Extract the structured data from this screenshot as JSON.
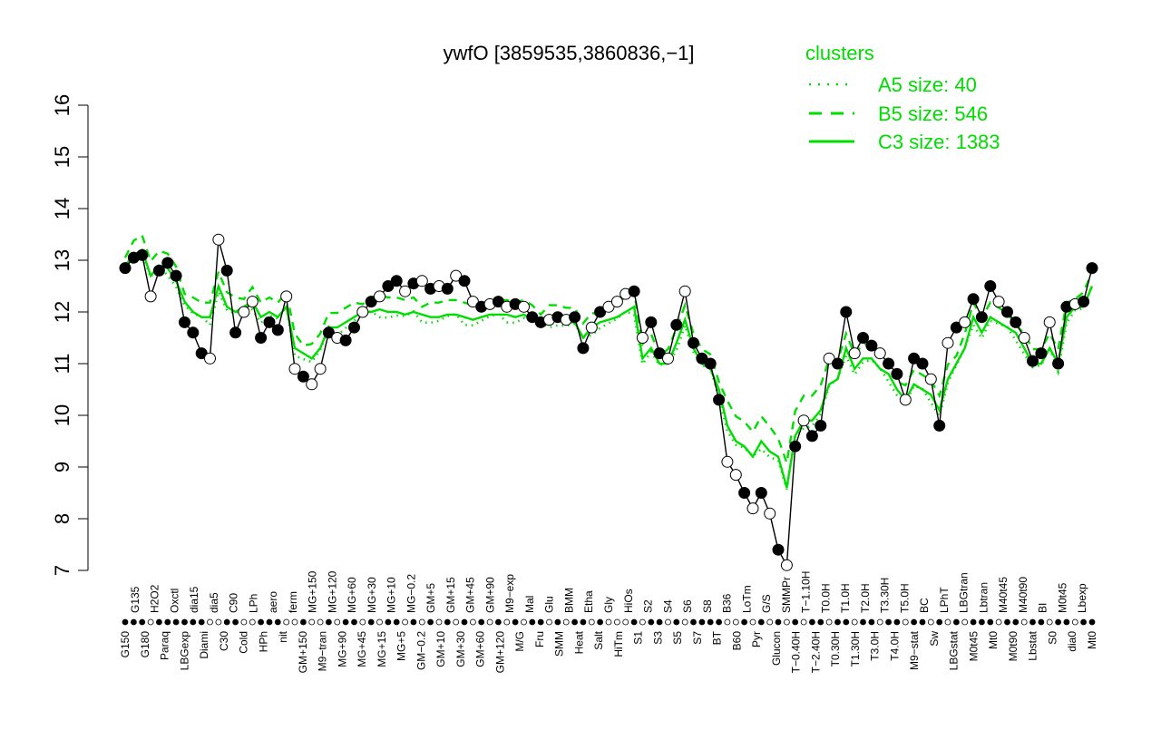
{
  "chart_data": {
    "type": "line",
    "title": "ywfO [3859535,3860836,−1]",
    "ylim": [
      7,
      16
    ],
    "yticks": [
      7,
      8,
      9,
      10,
      11,
      12,
      13,
      14,
      15,
      16
    ],
    "xlabels": [
      "G150",
      "G135",
      "G180",
      "H2O2",
      "Paraq",
      "Oxctl",
      "LBGexp",
      "dia15",
      "Diami",
      "dia5",
      "C30",
      "C90",
      "Cold",
      "LPh",
      "HPh",
      "aero",
      "nit",
      "ferm",
      "GM+150",
      "MG+150",
      "M9−tran",
      "MG+120",
      "MG+90",
      "MG+60",
      "MG+45",
      "MG+30",
      "MG+15",
      "MG+10",
      "MG+5",
      "MG−0.2",
      "GM−0.2",
      "GM+5",
      "GM+10",
      "GM+15",
      "GM+30",
      "GM+45",
      "GM+60",
      "GM+90",
      "GM+120",
      "M9−exp",
      "M/G",
      "Mal",
      "Fru",
      "Glu",
      "SMM",
      "BMM",
      "Heat",
      "Etha",
      "Salt",
      "Gly",
      "HiTm",
      "HiOs",
      "S1",
      "S2",
      "S3",
      "S4",
      "S5",
      "S6",
      "S7",
      "S8",
      "BT",
      "B36",
      "B60",
      "LoTm",
      "Pyr",
      "G/S",
      "Glucon",
      "SMMPr",
      "T−0.40H",
      "T−1.10H",
      "T−2.40H",
      "T0.0H",
      "T0.30H",
      "T1.0H",
      "T1.30H",
      "T2.0H",
      "T3.0H",
      "T3.30H",
      "T4.0H",
      "T5.0H",
      "M9−stat",
      "BC",
      "Sw",
      "LPhT",
      "LBGstat",
      "LBGtran",
      "M0t45",
      "Lbtran",
      "Mt0",
      "M40t45",
      "M0t90",
      "M40t90",
      "Lbstat",
      "BI",
      "S0",
      "M0t45",
      "dia0",
      "Lbexp",
      "Mt0"
    ],
    "series": [
      {
        "name": "A5 size: 40",
        "style": "dotted",
        "color": "#00dd00"
      },
      {
        "name": "B5 size: 546",
        "style": "dashed",
        "color": "#00dd00"
      },
      {
        "name": "C3 size: 1383",
        "style": "solid",
        "color": "#00dd00"
      }
    ],
    "points_y": [
      12.85,
      13.05,
      13.1,
      12.3,
      12.8,
      12.95,
      12.7,
      11.8,
      11.6,
      11.2,
      11.1,
      13.4,
      12.8,
      11.6,
      12.0,
      12.2,
      11.5,
      11.8,
      11.65,
      12.3,
      10.9,
      10.75,
      10.6,
      10.9,
      11.6,
      11.5,
      11.45,
      11.7,
      12.0,
      12.2,
      12.3,
      12.5,
      12.6,
      12.4,
      12.55,
      12.6,
      12.45,
      12.5,
      12.45,
      12.7,
      12.6,
      12.2,
      12.1,
      12.15,
      12.2,
      12.1,
      12.15,
      12.1,
      11.9,
      11.8,
      11.85,
      11.9,
      11.85,
      11.9,
      11.3,
      11.7,
      12.0,
      12.1,
      12.2,
      12.35,
      12.4,
      11.5,
      11.8,
      11.2,
      11.1,
      11.75,
      12.4,
      11.4,
      11.1,
      11.0,
      10.3,
      9.1,
      8.85,
      8.5,
      8.2,
      8.5,
      8.1,
      7.4,
      7.1,
      9.4,
      9.9,
      9.6,
      9.8,
      11.1,
      11.0,
      12.0,
      11.2,
      11.5,
      11.35,
      11.2,
      11.0,
      10.8,
      10.3,
      11.1,
      11.0,
      10.7,
      9.8,
      11.4,
      11.7,
      11.8,
      12.25,
      11.9,
      12.5,
      12.2,
      12.0,
      11.8,
      11.5,
      11.05,
      11.2,
      11.8,
      11.0,
      12.1,
      12.15,
      12.2,
      12.85
    ],
    "filled_pattern": [
      1,
      1,
      1,
      0,
      1,
      1,
      1,
      1,
      1,
      1,
      0,
      0,
      1,
      1,
      0,
      0,
      1,
      1,
      1,
      0,
      0,
      1,
      0,
      0,
      1,
      0,
      1,
      1,
      0,
      1,
      0,
      1,
      1,
      0,
      1,
      0,
      1,
      0,
      1,
      0,
      1,
      0,
      1,
      0,
      1,
      0,
      1,
      0,
      1,
      1,
      0,
      1,
      0,
      1,
      1,
      0,
      1,
      0,
      0,
      0,
      1,
      0,
      1,
      1,
      0,
      1,
      0,
      1,
      1,
      1,
      1,
      0,
      0,
      1,
      0,
      1,
      0,
      1,
      0,
      1,
      0,
      1,
      1,
      0,
      1,
      1,
      0,
      1,
      1,
      0,
      1,
      1,
      0,
      1,
      1,
      0,
      1,
      0,
      1,
      0,
      1,
      1,
      1,
      0,
      1,
      1,
      0,
      1,
      1,
      0,
      1,
      1,
      0,
      1,
      1
    ],
    "line_solid": [
      12.9,
      13.1,
      13.2,
      12.7,
      12.9,
      12.85,
      12.6,
      12.2,
      12.0,
      11.9,
      11.9,
      12.5,
      12.1,
      12.0,
      12.1,
      12.2,
      11.9,
      12.0,
      11.9,
      12.1,
      11.3,
      11.2,
      11.1,
      11.3,
      11.7,
      11.7,
      11.8,
      11.9,
      12.0,
      12.0,
      12.05,
      12.0,
      12.0,
      11.95,
      12.0,
      11.95,
      11.9,
      11.9,
      11.95,
      11.95,
      11.9,
      11.85,
      11.9,
      11.95,
      11.95,
      11.95,
      11.9,
      11.95,
      11.85,
      11.8,
      11.85,
      11.85,
      11.8,
      11.8,
      11.5,
      11.7,
      11.8,
      11.85,
      11.9,
      12.0,
      12.1,
      11.1,
      11.3,
      11.0,
      11.0,
      11.4,
      11.85,
      11.3,
      11.0,
      10.9,
      10.5,
      9.8,
      9.5,
      9.4,
      9.2,
      9.5,
      9.3,
      9.2,
      8.6,
      9.6,
      9.9,
      9.9,
      10.1,
      10.6,
      10.7,
      11.3,
      10.9,
      11.1,
      11.1,
      10.9,
      10.8,
      10.5,
      10.3,
      10.6,
      10.5,
      10.4,
      10.1,
      10.7,
      11.0,
      11.3,
      11.9,
      11.6,
      11.9,
      11.8,
      11.7,
      11.6,
      11.3,
      11.0,
      11.0,
      11.3,
      11.0,
      11.9,
      12.1,
      12.1,
      12.5
    ],
    "axis_color": "#000000",
    "line_color": "#00dd00"
  },
  "legend": {
    "heading": "clusters",
    "items": [
      {
        "label": "A5 size: 40",
        "style": "dotted"
      },
      {
        "label": "B5 size: 546",
        "style": "dashed"
      },
      {
        "label": "C3 size: 1383",
        "style": "solid"
      }
    ]
  }
}
